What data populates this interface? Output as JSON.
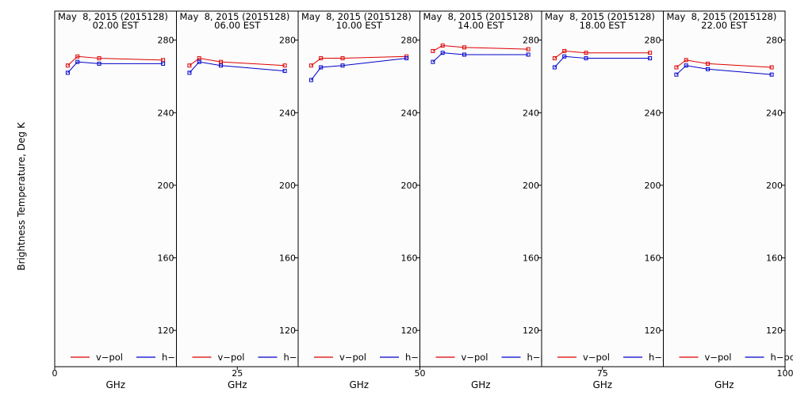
{
  "chart_data": {
    "type": "line",
    "ylabel": "Brightness Temperature, Deg K",
    "xlabel": "GHz",
    "ylim": [
      100,
      296
    ],
    "xlim": [
      0,
      100
    ],
    "yticks": [
      120,
      160,
      200,
      240,
      280
    ],
    "xticks": [
      0,
      25,
      50,
      75,
      100
    ],
    "ytick_labels": [
      "120",
      "160",
      "200",
      "240",
      "280"
    ],
    "xtick_labels": [
      "0",
      "25",
      "50",
      "75",
      "100"
    ],
    "colors": {
      "v-pol": "#dd0000",
      "h-pol": "#0000cc"
    },
    "legend": {
      "placement": "bottom",
      "entries": [
        "v−pol",
        "h−pol"
      ]
    },
    "panels": [
      {
        "date": "May  8, 2015 (2015128)",
        "time": "02.00 EST",
        "series": [
          {
            "name": "v−pol",
            "x": [
              10.7,
              18.7,
              36.5,
              89.0
            ],
            "y": [
              266,
              271,
              270,
              269
            ]
          },
          {
            "name": "h−pol",
            "x": [
              10.7,
              18.7,
              36.5,
              89.0
            ],
            "y": [
              262,
              268,
              267,
              267
            ]
          }
        ]
      },
      {
        "date": "May  8, 2015 (2015128)",
        "time": "06.00 EST",
        "series": [
          {
            "name": "v−pol",
            "x": [
              10.7,
              18.7,
              36.5,
              89.0
            ],
            "y": [
              266,
              270,
              268,
              266
            ]
          },
          {
            "name": "h−pol",
            "x": [
              10.7,
              18.7,
              36.5,
              89.0
            ],
            "y": [
              262,
              268,
              266,
              263
            ]
          }
        ]
      },
      {
        "date": "May  8, 2015 (2015128)",
        "time": "10.00 EST",
        "series": [
          {
            "name": "v−pol",
            "x": [
              10.7,
              18.7,
              36.5,
              89.0
            ],
            "y": [
              266,
              270,
              270,
              271
            ]
          },
          {
            "name": "h−pol",
            "x": [
              10.7,
              18.7,
              36.5,
              89.0
            ],
            "y": [
              258,
              265,
              266,
              270
            ]
          }
        ]
      },
      {
        "date": "May  8, 2015 (2015128)",
        "time": "14.00 EST",
        "series": [
          {
            "name": "v−pol",
            "x": [
              10.7,
              18.7,
              36.5,
              89.0
            ],
            "y": [
              274,
              277,
              276,
              275
            ]
          },
          {
            "name": "h−pol",
            "x": [
              10.7,
              18.7,
              36.5,
              89.0
            ],
            "y": [
              268,
              273,
              272,
              272
            ]
          }
        ]
      },
      {
        "date": "May  8, 2015 (2015128)",
        "time": "18.00 EST",
        "series": [
          {
            "name": "v−pol",
            "x": [
              10.7,
              18.7,
              36.5,
              89.0
            ],
            "y": [
              270,
              274,
              273,
              273
            ]
          },
          {
            "name": "h−pol",
            "x": [
              10.7,
              18.7,
              36.5,
              89.0
            ],
            "y": [
              265,
              271,
              270,
              270
            ]
          }
        ]
      },
      {
        "date": "May  8, 2015 (2015128)",
        "time": "22.00 EST",
        "series": [
          {
            "name": "v−pol",
            "x": [
              10.7,
              18.7,
              36.5,
              89.0
            ],
            "y": [
              265,
              269,
              267,
              265
            ]
          },
          {
            "name": "h−pol",
            "x": [
              10.7,
              18.7,
              36.5,
              89.0
            ],
            "y": [
              261,
              266,
              264,
              261
            ]
          }
        ]
      }
    ]
  }
}
